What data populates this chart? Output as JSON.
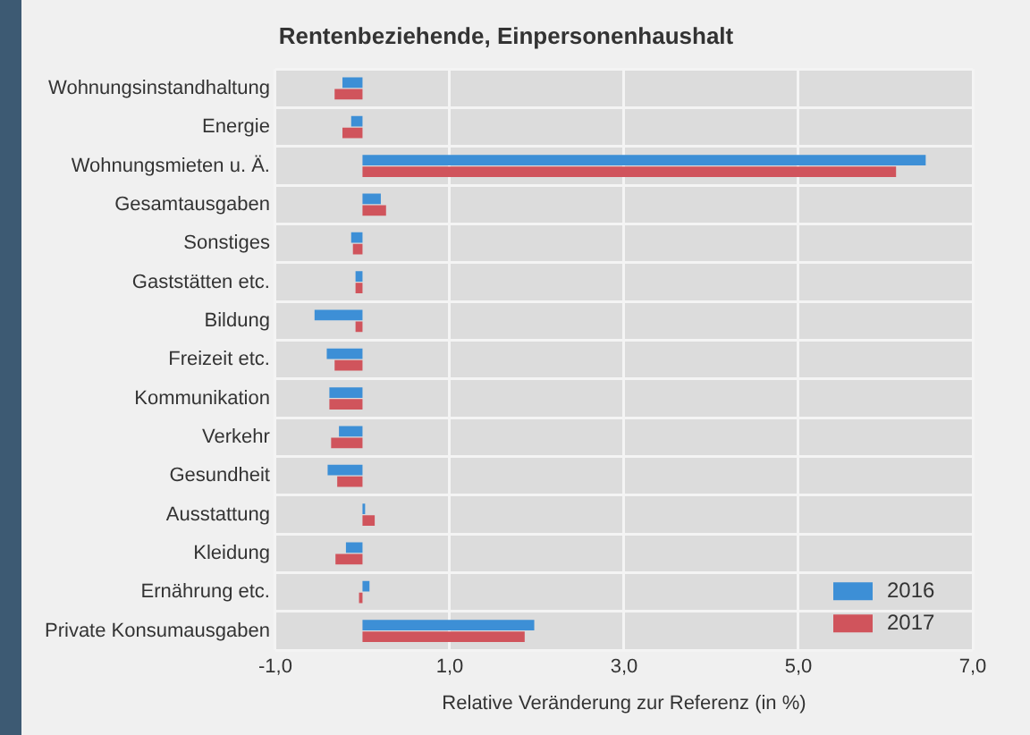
{
  "chart_data": {
    "type": "bar",
    "orientation": "horizontal",
    "title": "Rentenbeziehende, Einpersonenhaushalt",
    "xlabel": "Relative Veränderung zur Referenz (in %)",
    "categories": [
      "Wohnungsinstandhaltung",
      "Energie",
      "Wohnungsmieten u. Ä.",
      "Gesamtausgaben",
      "Sonstiges",
      "Gaststätten etc.",
      "Bildung",
      "Freizeit etc.",
      "Kommunikation",
      "Verkehr",
      "Gesundheit",
      "Ausstattung",
      "Kleidung",
      "Ernährung etc.",
      "Private Konsumausgaben"
    ],
    "series": [
      {
        "name": "2016",
        "color": "#3d8fd6",
        "values": [
          -0.23,
          -0.13,
          6.46,
          0.21,
          -0.13,
          -0.08,
          -0.55,
          -0.41,
          -0.38,
          -0.27,
          -0.4,
          0.03,
          -0.19,
          0.08,
          1.97
        ]
      },
      {
        "name": "2017",
        "color": "#d0545c",
        "values": [
          -0.32,
          -0.23,
          6.12,
          0.27,
          -0.11,
          -0.08,
          -0.08,
          -0.32,
          -0.38,
          -0.36,
          -0.29,
          0.14,
          -0.31,
          -0.04,
          1.86
        ]
      }
    ],
    "xlim": [
      -1,
      7
    ],
    "xticks": [
      {
        "value": -1,
        "label": "-1,0"
      },
      {
        "value": 1,
        "label": "1,0"
      },
      {
        "value": 3,
        "label": "3,0"
      },
      {
        "value": 5,
        "label": "5,0"
      },
      {
        "value": 7,
        "label": "7,0"
      }
    ],
    "grid": true,
    "legend": "bottom right"
  }
}
